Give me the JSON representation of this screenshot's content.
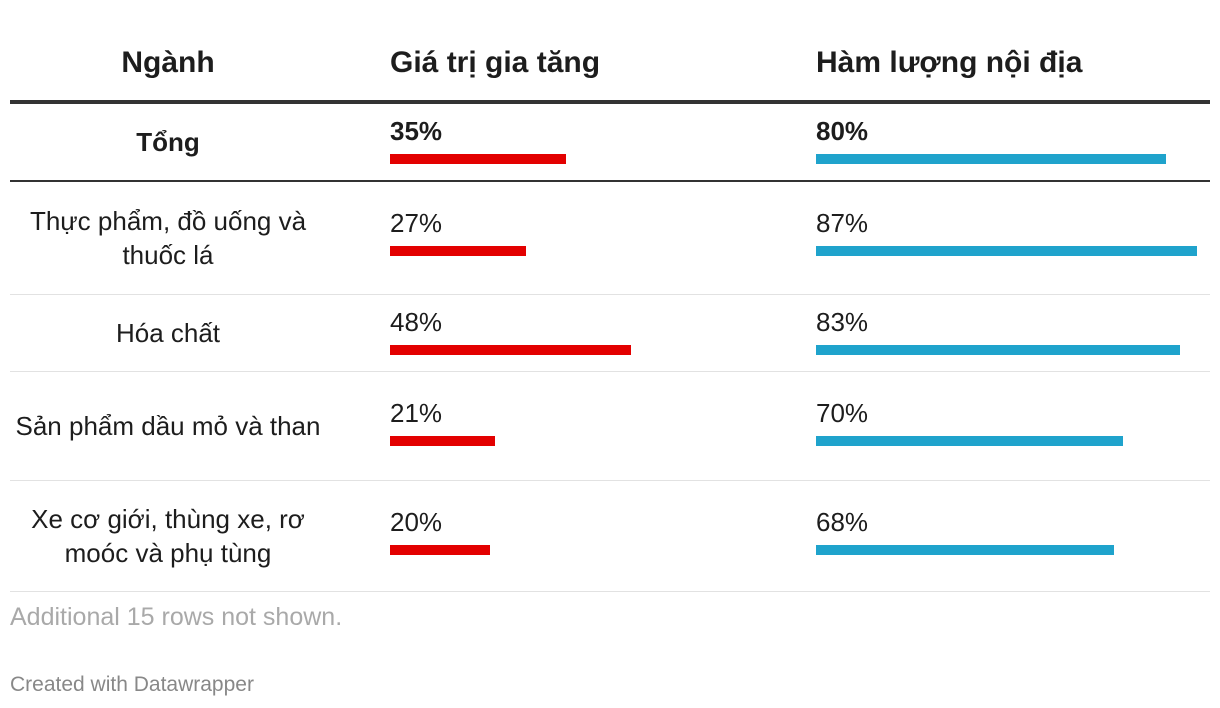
{
  "header": {
    "sector": "Ngành",
    "value_added": "Giá trị gia tăng",
    "domestic_content": "Hàm lượng nội địa"
  },
  "footer": {
    "note": "Additional 15 rows not shown.",
    "credit": "Created with Datawrapper"
  },
  "colors": {
    "value_added": "#e30000",
    "domestic_content": "#1fa3cc"
  },
  "chart_data": {
    "type": "table",
    "columns": [
      "Ngành",
      "Giá trị gia tăng",
      "Hàm lượng nội địa"
    ],
    "bar_scale_max": 100,
    "rows": [
      {
        "sector": "Tổng",
        "value_added": 35,
        "value_added_label": "35%",
        "domestic_content": 80,
        "domestic_content_label": "80%",
        "bold": true
      },
      {
        "sector": "Thực phẩm, đồ uống và thuốc lá",
        "value_added": 27,
        "value_added_label": "27%",
        "domestic_content": 87,
        "domestic_content_label": "87%"
      },
      {
        "sector": "Hóa chất",
        "value_added": 48,
        "value_added_label": "48%",
        "domestic_content": 83,
        "domestic_content_label": "83%"
      },
      {
        "sector": "Sản phẩm dầu mỏ và than",
        "value_added": 21,
        "value_added_label": "21%",
        "domestic_content": 70,
        "domestic_content_label": "70%"
      },
      {
        "sector": "Xe cơ giới, thùng xe, rơ moóc và phụ tùng",
        "value_added": 20,
        "value_added_label": "20%",
        "domestic_content": 68,
        "domestic_content_label": "68%"
      }
    ]
  }
}
